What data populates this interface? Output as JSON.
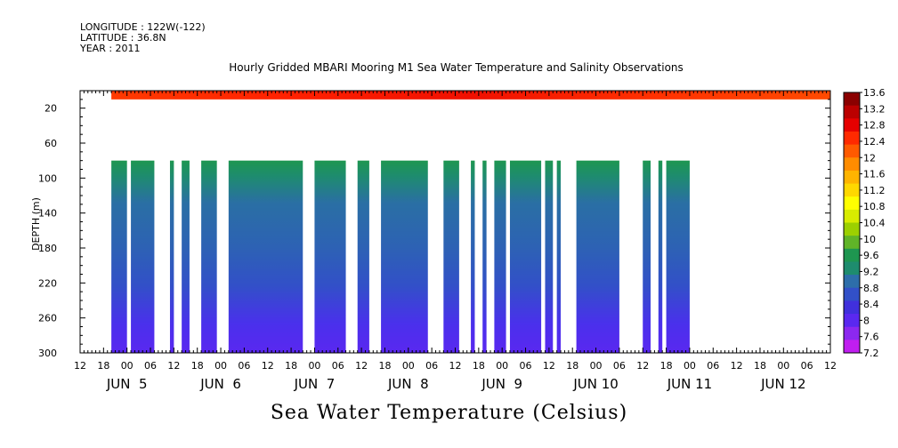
{
  "header": {
    "longitude": "LONGITUDE : 122W(-122)",
    "latitude": "LATITUDE : 36.8N",
    "year": "YEAR : 2011"
  },
  "chart_data": {
    "type": "heatmap",
    "title": "Hourly Gridded MBARI Mooring M1 Sea Water Temperature and Salinity Observations",
    "colorbar_title": "Sea Water Temperature (Celsius)",
    "xlabel": "",
    "ylabel": "DEPTH (m)",
    "y_range": [
      0,
      300
    ],
    "y_inverted": true,
    "y_ticks": [
      20,
      60,
      100,
      140,
      180,
      220,
      260,
      300
    ],
    "x_range_hours": [
      "2011-06-04T12:00",
      "2011-06-12T12:00"
    ],
    "x_hour_labels": [
      "12",
      "18",
      "00",
      "06",
      "12",
      "18",
      "00",
      "06",
      "12",
      "18",
      "00",
      "06",
      "12",
      "18",
      "00",
      "06",
      "12",
      "18",
      "00",
      "06",
      "12",
      "18",
      "00",
      "06",
      "12",
      "18",
      "00",
      "06",
      "12",
      "18",
      "00",
      "06",
      "12"
    ],
    "x_day_labels": [
      {
        "text": "JUN  5",
        "date": "2011-06-05"
      },
      {
        "text": "JUN  6",
        "date": "2011-06-06"
      },
      {
        "text": "JUN  7",
        "date": "2011-06-07"
      },
      {
        "text": "JUN  8",
        "date": "2011-06-08"
      },
      {
        "text": "JUN  9",
        "date": "2011-06-09"
      },
      {
        "text": "JUN 10",
        "date": "2011-06-10"
      },
      {
        "text": "JUN 11",
        "date": "2011-06-11"
      },
      {
        "text": "JUN 12",
        "date": "2011-06-12"
      }
    ],
    "colorbar_levels": [
      "13.6",
      "13.2",
      "12.8",
      "12.4",
      "12",
      "11.6",
      "11.2",
      "10.8",
      "10.4",
      "10",
      "9.6",
      "9.2",
      "8.8",
      "8.4",
      "8",
      "7.6",
      "7.2"
    ],
    "colorbar_colors": [
      "#8b0000",
      "#bb0000",
      "#e60000",
      "#ff2a00",
      "#ff5a00",
      "#ff8c00",
      "#ffb400",
      "#ffd800",
      "#ffff00",
      "#d8ec00",
      "#9cd000",
      "#60b428",
      "#1e9650",
      "#1e8c6e",
      "#2d6eaa",
      "#3250c8",
      "#4030dc",
      "#5a28f0",
      "#8c28f0",
      "#c01ef0"
    ],
    "surface_layer": {
      "depth_range_m": [
        0,
        10
      ],
      "temp_range_c": [
        12.4,
        13.2
      ]
    },
    "deep_layer": {
      "depth_range_m": [
        80,
        300
      ],
      "temp_top_c": 9.4,
      "temp_bottom_c": 7.4
    },
    "deep_data_segments_hours": [
      [
        "2011-06-04T20:00",
        "2011-06-05T00:00"
      ],
      [
        "2011-06-05T01:00",
        "2011-06-05T07:00"
      ],
      [
        "2011-06-05T11:00",
        "2011-06-05T12:00"
      ],
      [
        "2011-06-05T14:00",
        "2011-06-05T16:00"
      ],
      [
        "2011-06-05T19:00",
        "2011-06-05T23:00"
      ],
      [
        "2011-06-06T02:00",
        "2011-06-06T21:00"
      ],
      [
        "2011-06-07T00:00",
        "2011-06-07T08:00"
      ],
      [
        "2011-06-07T11:00",
        "2011-06-07T14:00"
      ],
      [
        "2011-06-07T17:00",
        "2011-06-08T05:00"
      ],
      [
        "2011-06-08T09:00",
        "2011-06-08T13:00"
      ],
      [
        "2011-06-08T16:00",
        "2011-06-08T17:00"
      ],
      [
        "2011-06-08T19:00",
        "2011-06-08T20:00"
      ],
      [
        "2011-06-08T22:00",
        "2011-06-09T01:00"
      ],
      [
        "2011-06-09T02:00",
        "2011-06-09T10:00"
      ],
      [
        "2011-06-09T11:00",
        "2011-06-09T13:00"
      ],
      [
        "2011-06-09T14:00",
        "2011-06-09T15:00"
      ],
      [
        "2011-06-09T19:00",
        "2011-06-10T06:00"
      ],
      [
        "2011-06-10T12:00",
        "2011-06-10T14:00"
      ],
      [
        "2011-06-10T16:00",
        "2011-06-10T17:00"
      ],
      [
        "2011-06-10T18:00",
        "2011-06-11T00:00"
      ]
    ]
  }
}
